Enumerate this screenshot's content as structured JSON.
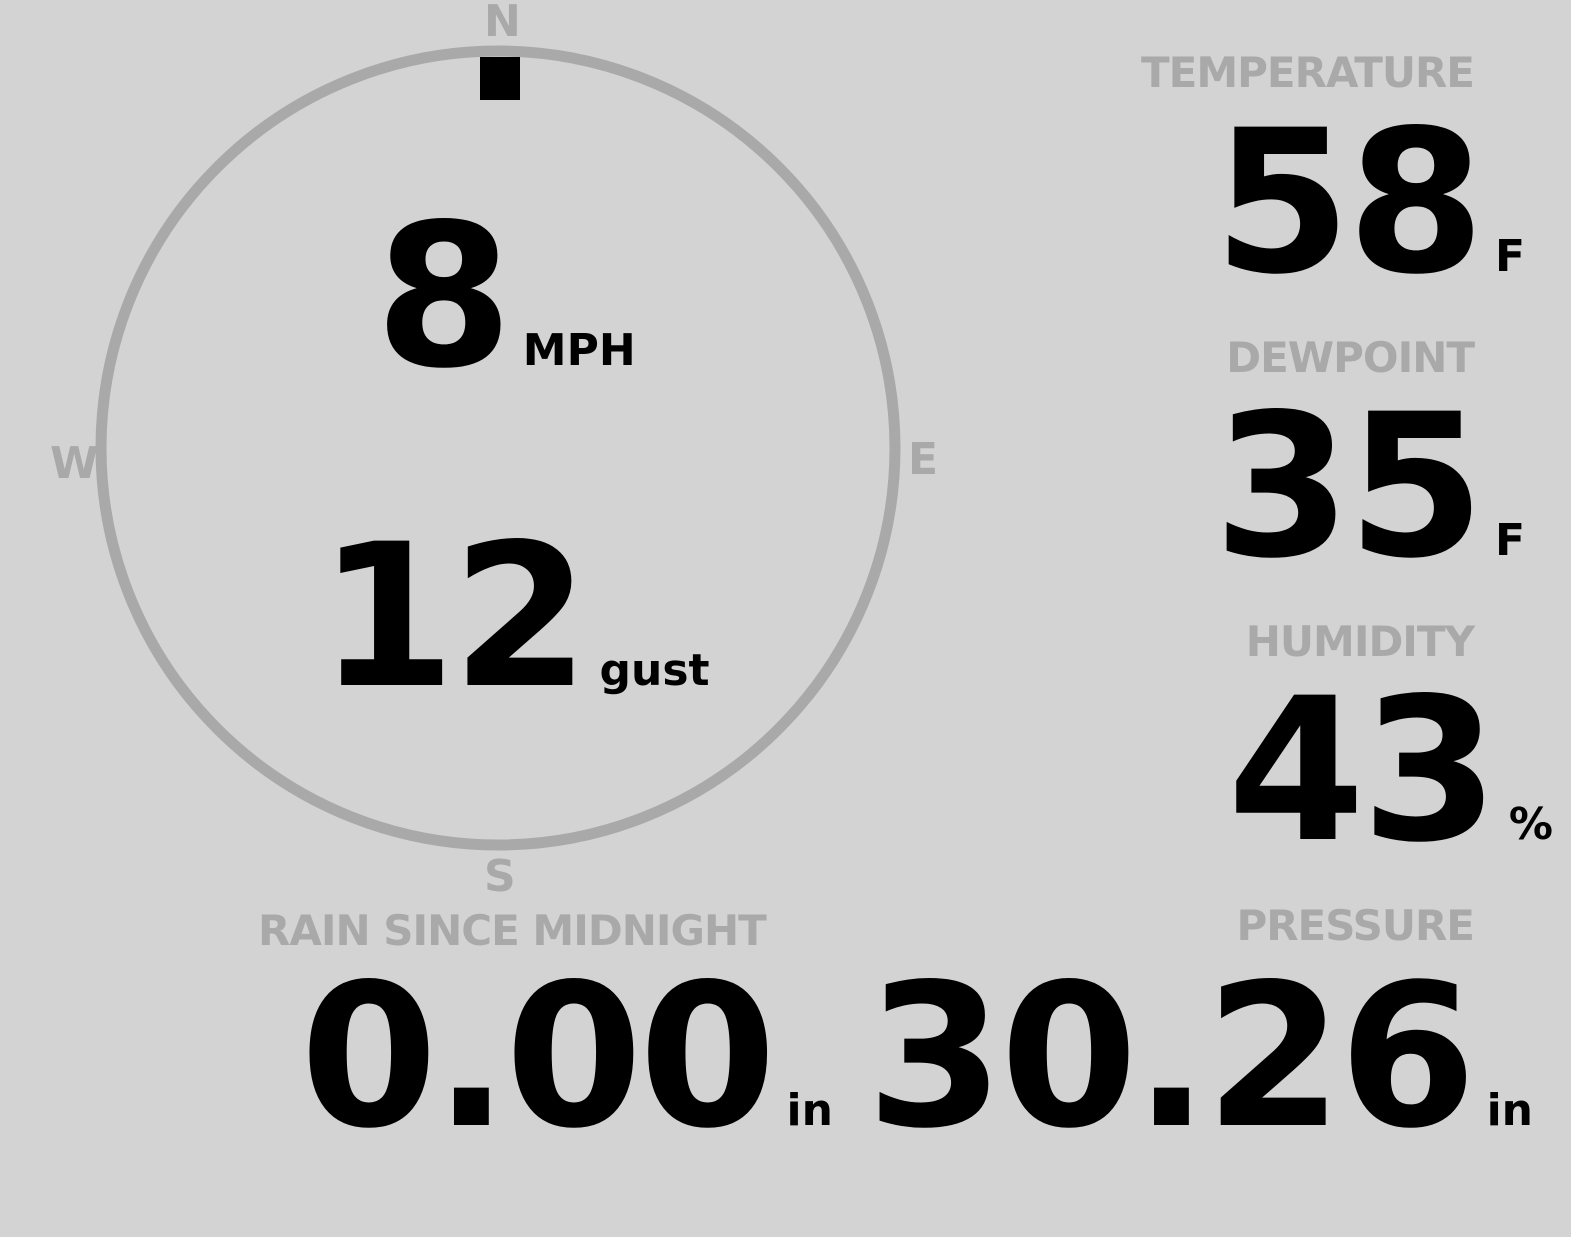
{
  "colors": {
    "background": "#d3d3d3",
    "label": "#a9a9a9",
    "value": "#000000"
  },
  "wind": {
    "compass": {
      "n": "N",
      "e": "E",
      "s": "S",
      "w": "W"
    },
    "direction_degrees": 0,
    "speed": "8",
    "speed_unit": "MPH",
    "gust": "12",
    "gust_unit": "gust"
  },
  "temperature": {
    "label": "TEMPERATURE",
    "value": "58",
    "unit": "F"
  },
  "dewpoint": {
    "label": "DEWPOINT",
    "value": "35",
    "unit": "F"
  },
  "humidity": {
    "label": "HUMIDITY",
    "value": "43",
    "unit": "%"
  },
  "rain": {
    "label": "RAIN SINCE MIDNIGHT",
    "value": "0.00",
    "unit": "in"
  },
  "pressure": {
    "label": "PRESSURE",
    "value": "30.26",
    "unit": "in"
  }
}
